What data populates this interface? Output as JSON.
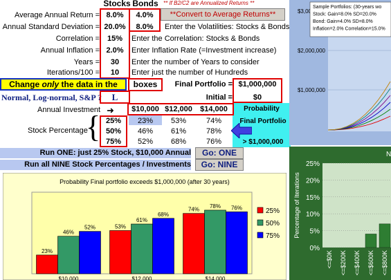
{
  "header": {
    "stocks": "Stocks",
    "bonds": "Bonds",
    "note": "** If B2/C2 are Annualized Returns **"
  },
  "inputs": [
    {
      "label": "Average Annual Return =",
      "stocks": "8.0%",
      "bonds": "4.0%"
    },
    {
      "label": "Annual Standard Deviation =",
      "stocks": "20.0%",
      "bonds": "8.0%",
      "hint": "Enter the Volatilities: Stocks & Bonds"
    },
    {
      "label": "Correlation =",
      "stocks": "15%",
      "hint": "Enter the Correlation: Stocks & Bonds"
    },
    {
      "label": "Annual Inflation =",
      "stocks": "2.0%",
      "hint": "Enter Inflation Rate (=Investment increase)"
    },
    {
      "label": "Years =",
      "stocks": "30",
      "hint": "Enter the number of Years to consider"
    },
    {
      "label": "Iterations/100 =",
      "stocks": "10",
      "hint": "Enter just the number of Hundreds"
    }
  ],
  "convert_button": "**Convert to Average Returns**",
  "change_banner": {
    "pre": "Change ",
    "em": "only",
    "post": " the data in the",
    "boxes": "boxes"
  },
  "final_portfolio": {
    "label": "Final Portfolio =",
    "value": "$1,000,000"
  },
  "initial": {
    "label": "Initial =",
    "value": "$0"
  },
  "distribution": {
    "question": "Normal, Log-normal, S&P ?",
    "value": "L"
  },
  "annual_investment": {
    "label": "Annual Investment",
    "values": [
      "$10,000",
      "$12,000",
      "$14,000"
    ]
  },
  "probability": {
    "heading": "Probability",
    "final_portfolio": "Final Portfolio",
    "threshold": "> $1,000,000"
  },
  "stock_percentage": {
    "label": "Stock Percentage",
    "rows": [
      {
        "pct": "25%",
        "cells": [
          "23%",
          "53%",
          "74%"
        ]
      },
      {
        "pct": "50%",
        "cells": [
          "46%",
          "61%",
          "78%"
        ]
      },
      {
        "pct": "75%",
        "cells": [
          "52%",
          "68%",
          "76%"
        ]
      }
    ]
  },
  "run_one": {
    "label": "Run ONE: just 25% Stock, $10,000 Annual",
    "button": "Go: ONE"
  },
  "run_nine": {
    "label": "Run all NINE Stock Percentages / Investments",
    "button": "Go: NINE"
  },
  "chart_data": [
    {
      "type": "bar",
      "title": "Probability Final portfolio exceeds $1,000,000 (after 30 years)",
      "categories": [
        "$10,000",
        "$12,000",
        "$14,000"
      ],
      "series": [
        {
          "name": "25%",
          "values": [
            23,
            53,
            74
          ],
          "color": "#ff0000"
        },
        {
          "name": "50%",
          "values": [
            46,
            61,
            78
          ],
          "color": "#339966"
        },
        {
          "name": "75%",
          "values": [
            52,
            68,
            76
          ],
          "color": "#0000ff"
        }
      ],
      "ylim": [
        0,
        100
      ],
      "legend": "right",
      "colors": {
        "plot_bg": "#ffffaa",
        "frame": "#999999"
      }
    },
    {
      "type": "line",
      "title": "",
      "yticks": [
        "$3,000,000",
        "$2,000,000",
        "$1,000,000"
      ],
      "legend_text": [
        "Sample Portfolios: (30-years wo",
        "Stock: Gain=8.0% SD=20.0%",
        "Bond: Gain=4.0% SD=8.0%",
        "Inflation=2.0% Correlation=15.0%"
      ],
      "colors": {
        "bg": "#a0b8e0",
        "plot": "#c8d8f0"
      }
    },
    {
      "type": "bar",
      "title": "N",
      "ylabel": "Percentage of Iterations",
      "yticks": [
        "25%",
        "20%",
        "15%",
        "10%",
        "5%",
        "0%"
      ],
      "categories": [
        "<=$0K",
        "<=$200K",
        "<=$400K",
        "<=$600K",
        "<=$800K"
      ],
      "values": [
        0,
        0,
        0,
        4,
        7
      ],
      "ylim": [
        0,
        25
      ],
      "colors": {
        "bg": "#2e6b2e",
        "plot": "#cfe3c8",
        "bar": "#2e7d32"
      }
    }
  ]
}
